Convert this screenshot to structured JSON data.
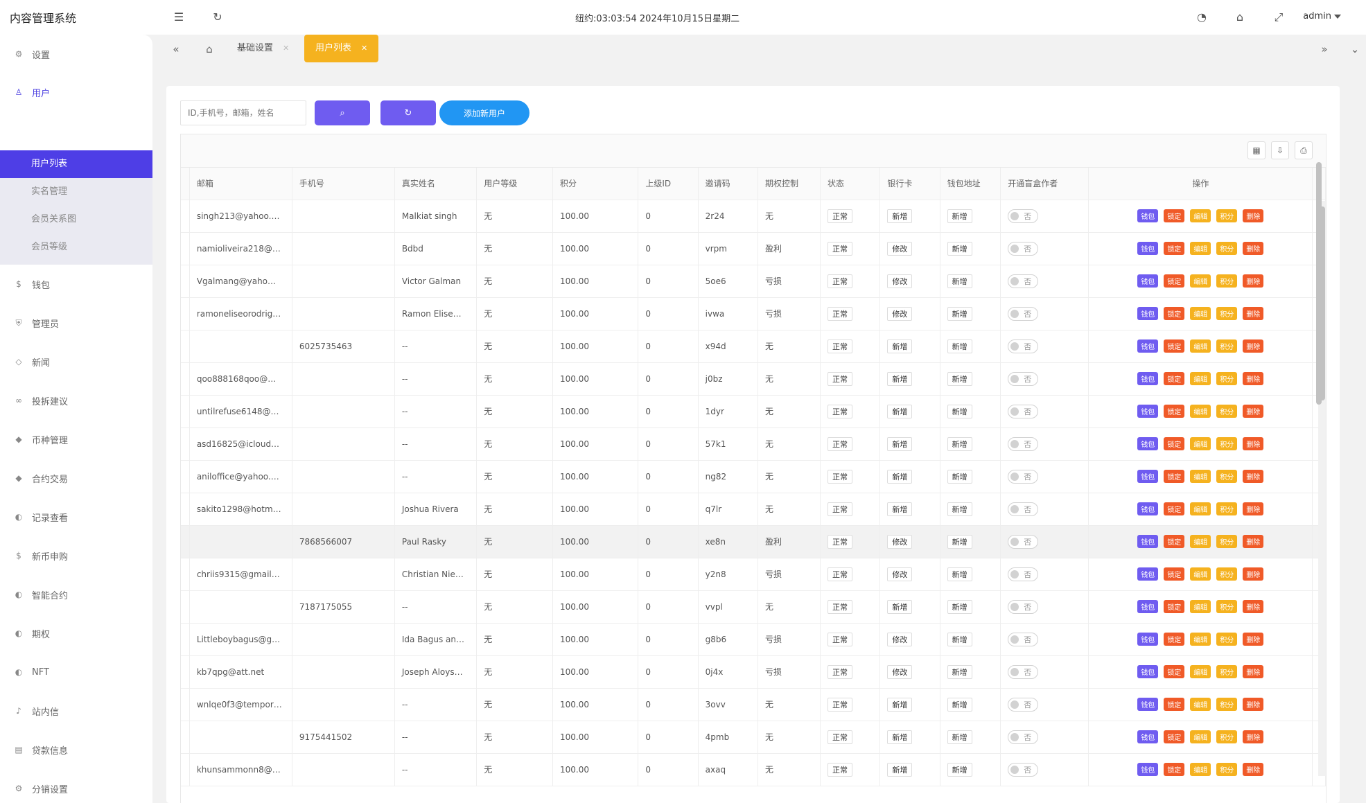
{
  "app": {
    "title": "内容管理系统"
  },
  "header": {
    "clock": "纽约:03:03:54 2024年10月15日星期二",
    "user": "admin",
    "icons": [
      "menu-fold-icon",
      "refresh-icon",
      "theme-icon",
      "tag-icon",
      "fullscreen-icon"
    ]
  },
  "sidebar": {
    "items": [
      {
        "label": "设置",
        "icon": "gear-icon"
      },
      {
        "label": "用户",
        "icon": "user-icon"
      },
      {
        "label": "钱包",
        "icon": "dollar-icon"
      },
      {
        "label": "管理员",
        "icon": "shield-icon"
      },
      {
        "label": "新闻",
        "icon": "tag-icon"
      },
      {
        "label": "投拆建议",
        "icon": "link-icon"
      },
      {
        "label": "币种管理",
        "icon": "diamond-icon"
      },
      {
        "label": "合约交易",
        "icon": "diamond-icon"
      },
      {
        "label": "记录查看",
        "icon": "record-icon"
      },
      {
        "label": "新币申购",
        "icon": "dollar-icon"
      },
      {
        "label": "智能合约",
        "icon": "record-icon"
      },
      {
        "label": "期权",
        "icon": "record-icon"
      },
      {
        "label": "NFT",
        "icon": "record-icon"
      },
      {
        "label": "站内信",
        "icon": "bell-icon"
      },
      {
        "label": "贷款信息",
        "icon": "doc-icon"
      },
      {
        "label": "分销设置",
        "icon": "gear-icon"
      }
    ],
    "submenu": [
      "用户列表",
      "实名管理",
      "会员关系图",
      "会员等级"
    ]
  },
  "tabs": [
    {
      "label": "基础设置"
    },
    {
      "label": "用户列表"
    }
  ],
  "search": {
    "placeholder": "ID,手机号，邮箱，姓名"
  },
  "buttons": {
    "add": "添加新用户"
  },
  "table": {
    "columns": [
      "邮箱",
      "手机号",
      "真实姓名",
      "用户等级",
      "积分",
      "上级ID",
      "邀请码",
      "期权控制",
      "状态",
      "银行卡",
      "钱包地址",
      "开通盲盒作者",
      "操作"
    ],
    "actions": [
      "钱包",
      "锁定",
      "编辑",
      "积分",
      "删除"
    ],
    "rows": [
      {
        "email": "singh213@yahoo.…",
        "phone": "",
        "name": "Malkiat singh",
        "level": "无",
        "points": "100.00",
        "parent": "0",
        "code": "2r24",
        "option": "无",
        "status": "正常",
        "bank": "新增",
        "wallet": "新增",
        "blind": "否"
      },
      {
        "email": "namioliveira218@…",
        "phone": "",
        "name": "Bdbd",
        "level": "无",
        "points": "100.00",
        "parent": "0",
        "code": "vrpm",
        "option": "盈利",
        "status": "正常",
        "bank": "修改",
        "wallet": "新增",
        "blind": "否"
      },
      {
        "email": "Vgalmang@yaho…",
        "phone": "",
        "name": "Victor Galman",
        "level": "无",
        "points": "100.00",
        "parent": "0",
        "code": "5oe6",
        "option": "亏损",
        "status": "正常",
        "bank": "修改",
        "wallet": "新增",
        "blind": "否"
      },
      {
        "email": "ramoneliseorodrig…",
        "phone": "",
        "name": "Ramon Elise…",
        "level": "无",
        "points": "100.00",
        "parent": "0",
        "code": "ivwa",
        "option": "亏损",
        "status": "正常",
        "bank": "修改",
        "wallet": "新增",
        "blind": "否"
      },
      {
        "email": "",
        "phone": "6025735463",
        "name": "--",
        "level": "无",
        "points": "100.00",
        "parent": "0",
        "code": "x94d",
        "option": "无",
        "status": "正常",
        "bank": "新增",
        "wallet": "新增",
        "blind": "否"
      },
      {
        "email": "qoo888168qoo@…",
        "phone": "",
        "name": "--",
        "level": "无",
        "points": "100.00",
        "parent": "0",
        "code": "j0bz",
        "option": "无",
        "status": "正常",
        "bank": "新增",
        "wallet": "新增",
        "blind": "否"
      },
      {
        "email": "untilrefuse6148@…",
        "phone": "",
        "name": "--",
        "level": "无",
        "points": "100.00",
        "parent": "0",
        "code": "1dyr",
        "option": "无",
        "status": "正常",
        "bank": "新增",
        "wallet": "新增",
        "blind": "否"
      },
      {
        "email": "asd16825@icloud…",
        "phone": "",
        "name": "--",
        "level": "无",
        "points": "100.00",
        "parent": "0",
        "code": "57k1",
        "option": "无",
        "status": "正常",
        "bank": "新增",
        "wallet": "新增",
        "blind": "否"
      },
      {
        "email": "aniloffice@yahoo.…",
        "phone": "",
        "name": "--",
        "level": "无",
        "points": "100.00",
        "parent": "0",
        "code": "ng82",
        "option": "无",
        "status": "正常",
        "bank": "新增",
        "wallet": "新增",
        "blind": "否"
      },
      {
        "email": "sakito1298@hotm…",
        "phone": "",
        "name": "Joshua Rivera",
        "level": "无",
        "points": "100.00",
        "parent": "0",
        "code": "q7lr",
        "option": "无",
        "status": "正常",
        "bank": "新增",
        "wallet": "新增",
        "blind": "否"
      },
      {
        "email": "",
        "phone": "7868566007",
        "name": "Paul Rasky",
        "level": "无",
        "points": "100.00",
        "parent": "0",
        "code": "xe8n",
        "option": "盈利",
        "status": "正常",
        "bank": "修改",
        "wallet": "新增",
        "blind": "否"
      },
      {
        "email": "chriis9315@gmail…",
        "phone": "",
        "name": "Christian Nie…",
        "level": "无",
        "points": "100.00",
        "parent": "0",
        "code": "y2n8",
        "option": "亏损",
        "status": "正常",
        "bank": "修改",
        "wallet": "新增",
        "blind": "否"
      },
      {
        "email": "",
        "phone": "7187175055",
        "name": "--",
        "level": "无",
        "points": "100.00",
        "parent": "0",
        "code": "vvpl",
        "option": "无",
        "status": "正常",
        "bank": "新增",
        "wallet": "新增",
        "blind": "否"
      },
      {
        "email": "Littleboybagus@g…",
        "phone": "",
        "name": "Ida Bagus an…",
        "level": "无",
        "points": "100.00",
        "parent": "0",
        "code": "g8b6",
        "option": "亏损",
        "status": "正常",
        "bank": "修改",
        "wallet": "新增",
        "blind": "否"
      },
      {
        "email": "kb7qpg@att.net",
        "phone": "",
        "name": "Joseph Aloys…",
        "level": "无",
        "points": "100.00",
        "parent": "0",
        "code": "0j4x",
        "option": "亏损",
        "status": "正常",
        "bank": "修改",
        "wallet": "新增",
        "blind": "否"
      },
      {
        "email": "wnlqe0f3@tempor…",
        "phone": "",
        "name": "--",
        "level": "无",
        "points": "100.00",
        "parent": "0",
        "code": "3ovv",
        "option": "无",
        "status": "正常",
        "bank": "新增",
        "wallet": "新增",
        "blind": "否"
      },
      {
        "email": "",
        "phone": "9175441502",
        "name": "--",
        "level": "无",
        "points": "100.00",
        "parent": "0",
        "code": "4pmb",
        "option": "无",
        "status": "正常",
        "bank": "新增",
        "wallet": "新增",
        "blind": "否"
      },
      {
        "email": "khunsammonn8@…",
        "phone": "",
        "name": "--",
        "level": "无",
        "points": "100.00",
        "parent": "0",
        "code": "axaq",
        "option": "无",
        "status": "正常",
        "bank": "新增",
        "wallet": "新增",
        "blind": "否"
      }
    ]
  },
  "colors": {
    "primary": "#6f5cf0",
    "accent": "#2196f3",
    "orange": "#f05a28",
    "yellow": "#f5b21f",
    "active_menu": "#4e3ee6"
  }
}
